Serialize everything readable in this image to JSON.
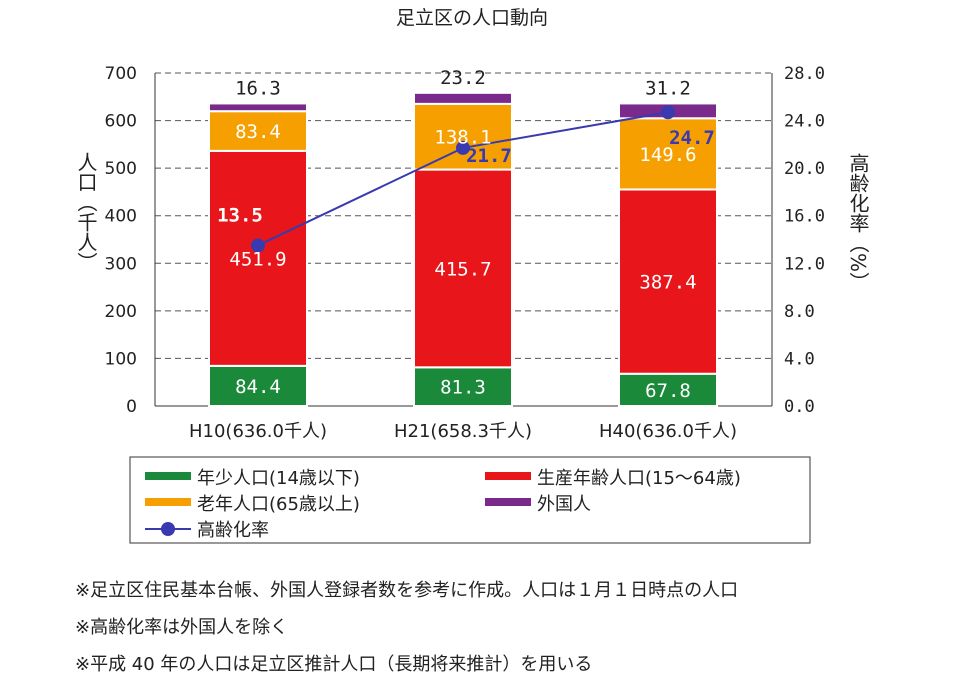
{
  "chart_data": {
    "type": "bar",
    "stacked": true,
    "title": "足立区の人口動向",
    "categories": [
      "H10(636.0千人)",
      "H21(658.3千人)",
      "H40(636.0千人)"
    ],
    "ylabel": "人口（千人）",
    "y2label": "高齢化率（%）",
    "ylim": [
      0,
      700
    ],
    "yticks": [
      "0",
      "100",
      "200",
      "300",
      "400",
      "500",
      "600",
      "700"
    ],
    "y2lim": [
      0,
      28
    ],
    "y2ticks": [
      "0.0",
      "4.0",
      "8.0",
      "12.0",
      "16.0",
      "20.0",
      "24.0",
      "28.0"
    ],
    "grid": true,
    "series": [
      {
        "name": "年少人口(14歳以下)",
        "color": "#1a8a3a",
        "values": [
          84.4,
          81.3,
          67.8
        ],
        "labels": [
          "84.4",
          "81.3",
          "67.8"
        ]
      },
      {
        "name": "生産年齢人口(15～64歳)",
        "color": "#e8161a",
        "values": [
          451.9,
          415.7,
          387.4
        ],
        "labels": [
          "451.9",
          "415.7",
          "387.4"
        ]
      },
      {
        "name": "老年人口(65歳以上)",
        "color": "#f5a000",
        "values": [
          83.4,
          138.1,
          149.6
        ],
        "labels": [
          "83.4",
          "138.1",
          "149.6"
        ]
      },
      {
        "name": "外国人",
        "color": "#7a2a8a",
        "values": [
          16.3,
          23.2,
          31.2
        ],
        "labels": [
          "16.3",
          "23.2",
          "31.2"
        ]
      }
    ],
    "line_series": {
      "name": "高齢化率",
      "color": "#3a3ab0",
      "axis": "right",
      "values": [
        13.5,
        21.7,
        24.7
      ],
      "labels": [
        "13.5",
        "21.7",
        "24.7"
      ]
    },
    "legend": [
      {
        "name": "年少人口(14歳以下)",
        "kind": "bar"
      },
      {
        "name": "生産年齢人口(15～64歳)",
        "kind": "bar"
      },
      {
        "name": "老年人口(65歳以上)",
        "kind": "bar"
      },
      {
        "name": "外国人",
        "kind": "bar"
      },
      {
        "name": "高齢化率",
        "kind": "line"
      }
    ]
  },
  "notes": [
    "※足立区住民基本台帳、外国人登録者数を参考に作成。人口は１月１日時点の人口",
    "※高齢化率は外国人を除く",
    "※平成 40 年の人口は足立区推計人口（長期将来推計）を用いる"
  ]
}
